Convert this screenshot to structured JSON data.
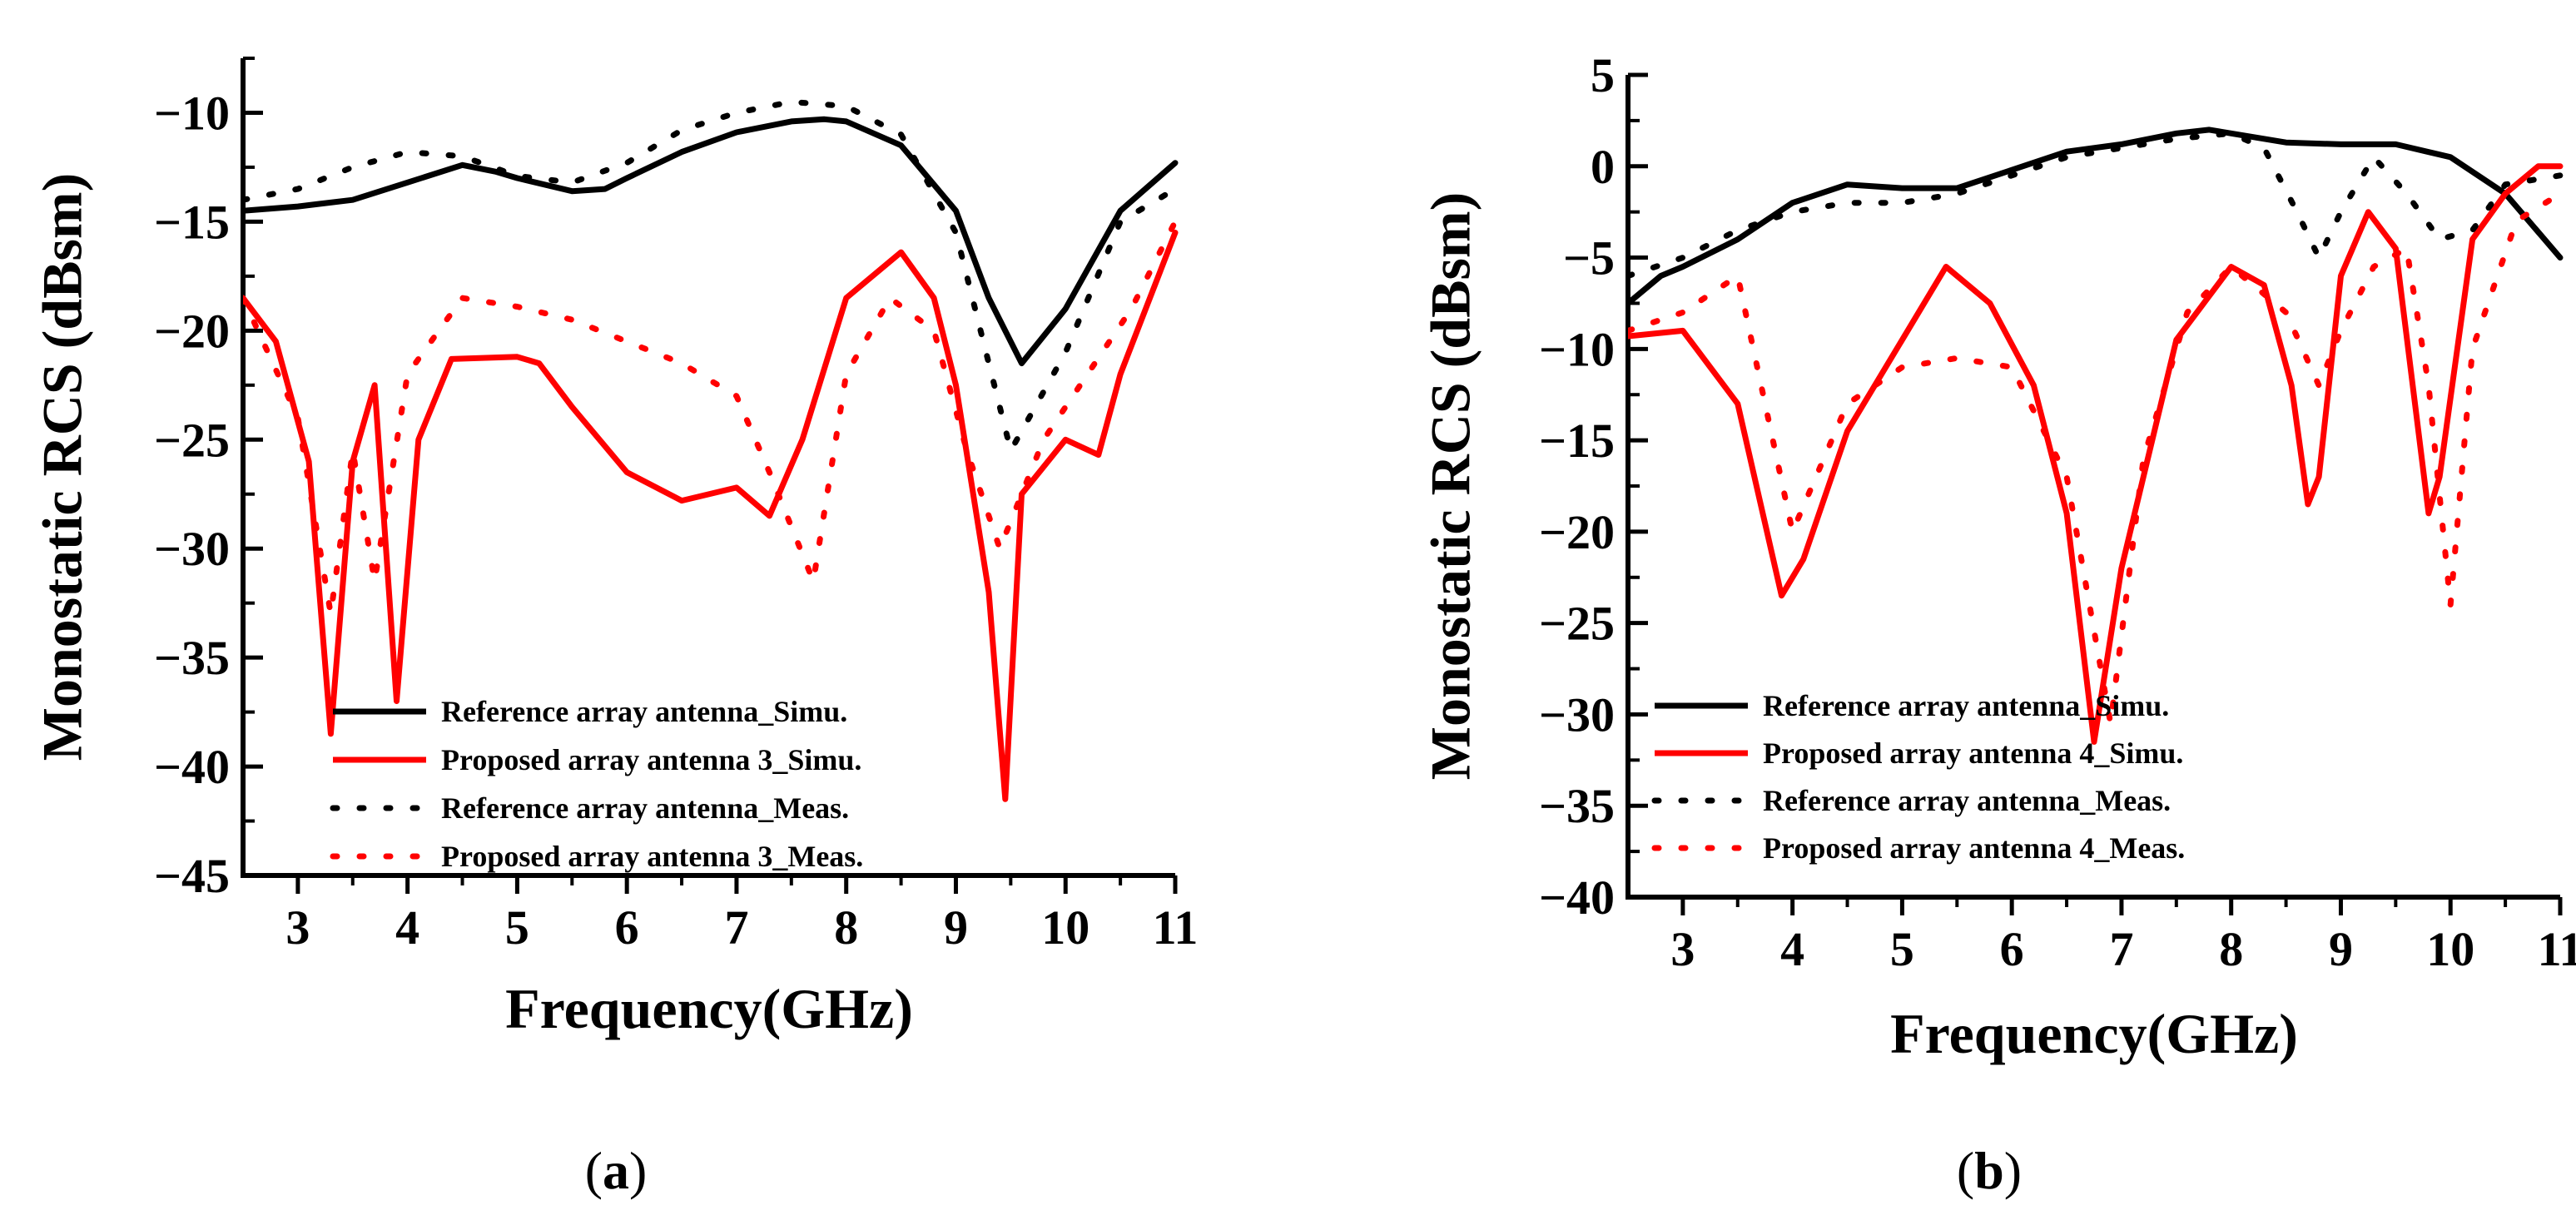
{
  "chart_data": [
    {
      "type": "line",
      "panel_label": "a",
      "xlabel": "Frequency(GHz)",
      "ylabel": "Monostatic RCS (dBsm)",
      "xlim": [
        2.5,
        11
      ],
      "ylim": [
        -45,
        -7.5
      ],
      "xticks": [
        3,
        4,
        5,
        6,
        7,
        8,
        9,
        10,
        11
      ],
      "yticks": [
        -45,
        -40,
        -35,
        -30,
        -25,
        -20,
        -15,
        -10
      ],
      "legend_position": "bottom-center",
      "series": [
        {
          "name": "Reference array antenna_Simu.",
          "color": "#000000",
          "style": "solid",
          "x": [
            2.5,
            3.0,
            3.5,
            4.0,
            4.5,
            4.8,
            5.0,
            5.5,
            5.8,
            6.0,
            6.5,
            7.0,
            7.5,
            7.8,
            8.0,
            8.5,
            9.0,
            9.3,
            9.6,
            10.0,
            10.5,
            11.0
          ],
          "y": [
            -14.5,
            -14.3,
            -14.0,
            -13.2,
            -12.4,
            -12.7,
            -13.0,
            -13.6,
            -13.5,
            -13.0,
            -11.8,
            -10.9,
            -10.4,
            -10.3,
            -10.4,
            -11.5,
            -14.5,
            -18.5,
            -21.5,
            -19.0,
            -14.5,
            -12.3
          ]
        },
        {
          "name": "Proposed array antenna 3_Simu.",
          "color": "#ff0000",
          "style": "solid",
          "x": [
            2.5,
            2.8,
            3.1,
            3.3,
            3.5,
            3.7,
            3.9,
            4.1,
            4.4,
            5.0,
            5.2,
            5.5,
            6.0,
            6.5,
            7.0,
            7.3,
            7.6,
            8.0,
            8.5,
            8.8,
            9.0,
            9.3,
            9.45,
            9.6,
            10.0,
            10.3,
            10.5,
            11.0
          ],
          "y": [
            -18.5,
            -20.5,
            -26.0,
            -38.5,
            -26.0,
            -22.5,
            -37.0,
            -25.0,
            -21.3,
            -21.2,
            -21.5,
            -23.5,
            -26.5,
            -27.8,
            -27.2,
            -28.5,
            -25.0,
            -18.5,
            -16.4,
            -18.5,
            -22.5,
            -32.0,
            -41.5,
            -27.5,
            -25.0,
            -25.7,
            -22.0,
            -15.5
          ]
        },
        {
          "name": "Reference array antenna_Meas.",
          "color": "#000000",
          "style": "dotted",
          "x": [
            2.5,
            3.0,
            3.5,
            4.0,
            4.5,
            5.0,
            5.5,
            6.0,
            6.5,
            7.0,
            7.5,
            8.0,
            8.5,
            9.0,
            9.5,
            10.0,
            10.5,
            11.0
          ],
          "y": [
            -14.0,
            -13.5,
            -12.5,
            -11.8,
            -12.0,
            -12.9,
            -13.2,
            -12.3,
            -10.8,
            -10.0,
            -9.5,
            -9.7,
            -11.0,
            -15.5,
            -25.5,
            -21.0,
            -15.0,
            -13.5
          ]
        },
        {
          "name": "Proposed array antenna 3_Meas.",
          "color": "#ff0000",
          "style": "dotted",
          "x": [
            2.5,
            3.0,
            3.3,
            3.5,
            3.7,
            4.0,
            4.5,
            5.0,
            5.5,
            6.0,
            6.5,
            7.0,
            7.3,
            7.7,
            8.0,
            8.4,
            8.8,
            9.1,
            9.4,
            9.8,
            10.2,
            10.6,
            11.0
          ],
          "y": [
            -18.5,
            -24.0,
            -33.0,
            -25.5,
            -31.5,
            -22.0,
            -18.5,
            -18.9,
            -19.5,
            -20.5,
            -21.5,
            -23.0,
            -26.5,
            -31.5,
            -22.0,
            -18.5,
            -20.0,
            -25.5,
            -30.0,
            -25.0,
            -22.0,
            -19.0,
            -15.0
          ]
        }
      ]
    },
    {
      "type": "line",
      "panel_label": "b",
      "xlabel": "Frequency(GHz)",
      "ylabel": "Monostatic RCS (dBsm)",
      "xlim": [
        2.5,
        11
      ],
      "ylim": [
        -40,
        5
      ],
      "xticks": [
        3,
        4,
        5,
        6,
        7,
        8,
        9,
        10,
        11
      ],
      "yticks": [
        -40,
        -35,
        -30,
        -25,
        -20,
        -15,
        -10,
        -5,
        0,
        5
      ],
      "legend_position": "bottom-left",
      "series": [
        {
          "name": "Reference array antenna_Simu.",
          "color": "#000000",
          "style": "solid",
          "x": [
            2.5,
            2.8,
            3.0,
            3.5,
            4.0,
            4.5,
            5.0,
            5.5,
            6.0,
            6.5,
            7.0,
            7.5,
            7.8,
            8.0,
            8.5,
            9.0,
            9.5,
            10.0,
            10.5,
            11.0
          ],
          "y": [
            -7.5,
            -6.0,
            -5.5,
            -4.0,
            -2.0,
            -1.0,
            -1.2,
            -1.2,
            -0.2,
            0.8,
            1.2,
            1.8,
            2.0,
            1.8,
            1.3,
            1.2,
            1.2,
            0.5,
            -1.5,
            -5.0
          ]
        },
        {
          "name": "Proposed array antenna 4_Simu.",
          "color": "#ff0000",
          "style": "solid",
          "x": [
            2.5,
            3.0,
            3.5,
            3.9,
            4.1,
            4.5,
            5.0,
            5.4,
            5.8,
            6.2,
            6.5,
            6.75,
            7.0,
            7.5,
            8.0,
            8.3,
            8.55,
            8.7,
            8.8,
            9.0,
            9.25,
            9.5,
            9.8,
            9.9,
            10.2,
            10.5,
            10.8,
            11.0
          ],
          "y": [
            -9.3,
            -9.0,
            -13.0,
            -23.5,
            -21.5,
            -14.5,
            -9.5,
            -5.5,
            -7.5,
            -12.0,
            -19.0,
            -31.5,
            -22.0,
            -9.5,
            -5.5,
            -6.5,
            -12.0,
            -18.5,
            -17.0,
            -6.0,
            -2.5,
            -4.5,
            -19.0,
            -17.0,
            -4.0,
            -1.5,
            0.0,
            0.0
          ]
        },
        {
          "name": "Reference array antenna_Meas.",
          "color": "#000000",
          "style": "dotted",
          "x": [
            2.5,
            3.0,
            3.5,
            4.0,
            4.5,
            5.0,
            5.5,
            6.0,
            6.5,
            7.0,
            7.5,
            8.0,
            8.3,
            8.6,
            8.8,
            9.0,
            9.3,
            9.6,
            9.9,
            10.2,
            10.5,
            11.0
          ],
          "y": [
            -6.0,
            -5.0,
            -3.5,
            -2.5,
            -2.0,
            -2.0,
            -1.5,
            -0.5,
            0.5,
            1.0,
            1.5,
            1.8,
            1.0,
            -2.5,
            -5.0,
            -2.5,
            0.5,
            -1.5,
            -4.0,
            -3.5,
            -1.0,
            -0.5
          ]
        },
        {
          "name": "Proposed array antenna 4_Meas.",
          "color": "#ff0000",
          "style": "dotted",
          "x": [
            2.5,
            3.0,
            3.5,
            4.0,
            4.5,
            5.0,
            5.5,
            6.0,
            6.5,
            6.9,
            7.2,
            7.6,
            8.0,
            8.5,
            8.8,
            9.0,
            9.3,
            9.6,
            9.8,
            10.0,
            10.2,
            10.6,
            11.0
          ],
          "y": [
            -9.0,
            -8.0,
            -6.0,
            -20.0,
            -13.0,
            -11.0,
            -10.5,
            -11.0,
            -17.0,
            -30.5,
            -16.0,
            -8.0,
            -5.5,
            -8.0,
            -12.0,
            -9.0,
            -5.5,
            -4.5,
            -12.0,
            -24.0,
            -10.0,
            -3.0,
            -1.5
          ]
        }
      ]
    }
  ]
}
